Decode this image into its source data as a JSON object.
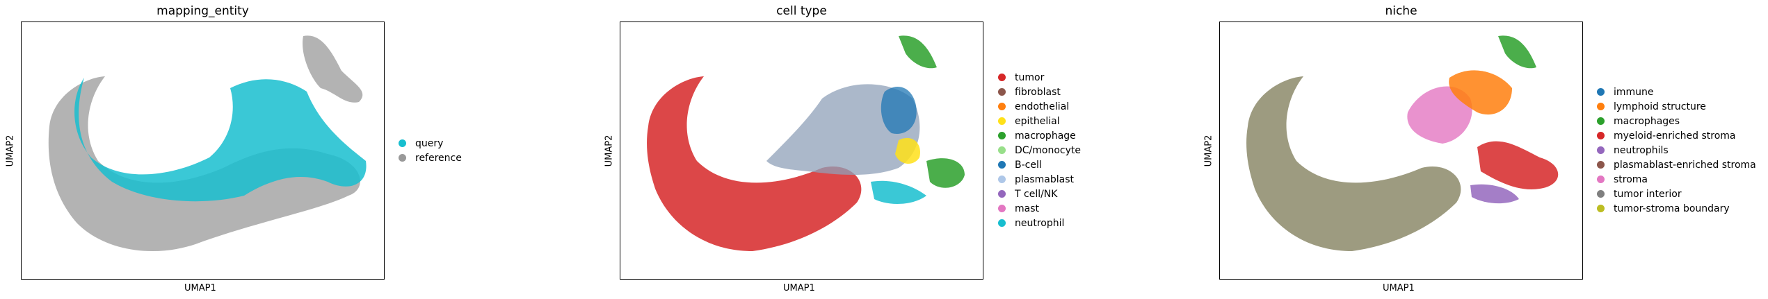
{
  "chart_data": [
    {
      "type": "scatter",
      "title": "mapping_entity",
      "xlabel": "UMAP1",
      "ylabel": "UMAP2",
      "grid": false,
      "legend_position": "right",
      "legend": [
        {
          "label": "query",
          "color": "#17becf"
        },
        {
          "label": "reference",
          "color": "#999999"
        }
      ]
    },
    {
      "type": "scatter",
      "title": "cell type",
      "xlabel": "UMAP1",
      "ylabel": "UMAP2",
      "grid": false,
      "legend_position": "right",
      "legend": [
        {
          "label": "tumor",
          "color": "#d62728"
        },
        {
          "label": "fibroblast",
          "color": "#8c564b"
        },
        {
          "label": "endothelial",
          "color": "#ff7f0e"
        },
        {
          "label": "epithelial",
          "color": "#ffe119"
        },
        {
          "label": "macrophage",
          "color": "#2ca02c"
        },
        {
          "label": "DC/monocyte",
          "color": "#98df8a"
        },
        {
          "label": "B-cell",
          "color": "#1f77b4"
        },
        {
          "label": "plasmablast",
          "color": "#aec7e8"
        },
        {
          "label": "T cell/NK",
          "color": "#9467bd"
        },
        {
          "label": "mast",
          "color": "#e377c2"
        },
        {
          "label": "neutrophil",
          "color": "#17becf"
        }
      ]
    },
    {
      "type": "scatter",
      "title": "niche",
      "xlabel": "UMAP1",
      "ylabel": "UMAP2",
      "grid": false,
      "legend_position": "right",
      "legend": [
        {
          "label": "immune",
          "color": "#1f77b4"
        },
        {
          "label": "lymphoid structure",
          "color": "#ff7f0e"
        },
        {
          "label": "macrophages",
          "color": "#2ca02c"
        },
        {
          "label": "myeloid-enriched stroma",
          "color": "#d62728"
        },
        {
          "label": "neutrophils",
          "color": "#9467bd"
        },
        {
          "label": "plasmablast-enriched stroma",
          "color": "#8c564b"
        },
        {
          "label": "stroma",
          "color": "#e377c2"
        },
        {
          "label": "tumor interior",
          "color": "#7f7f7f"
        },
        {
          "label": "tumor-stroma boundary",
          "color": "#bcbd22"
        }
      ]
    }
  ]
}
